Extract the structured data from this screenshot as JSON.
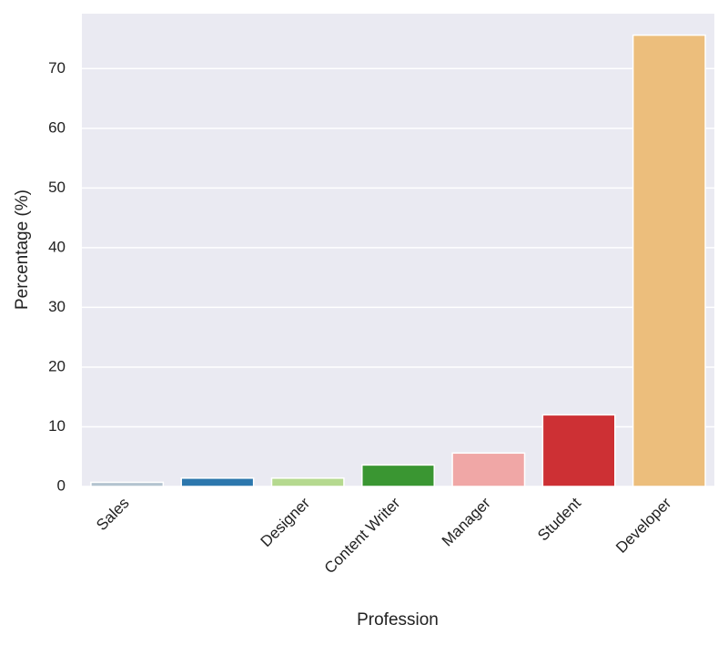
{
  "chart_data": {
    "type": "bar",
    "x_label": "Profession",
    "y_label": "Percentage (%)",
    "categories": [
      "Sales",
      null,
      "Designer",
      "Content Writer",
      "Manager",
      "Student",
      "Developer"
    ],
    "values": [
      0.7,
      1.4,
      1.4,
      3.6,
      5.6,
      12,
      75.6
    ],
    "colors": [
      "#b3c3cf",
      "#2c77ad",
      "#b5d98f",
      "#3a9632",
      "#f0a7a6",
      "#cd3034",
      "#ecbe7c"
    ],
    "ylim": [
      0,
      79.2
    ],
    "yticks": [
      0,
      10,
      20,
      30,
      40,
      50,
      60,
      70
    ],
    "grid": true
  }
}
